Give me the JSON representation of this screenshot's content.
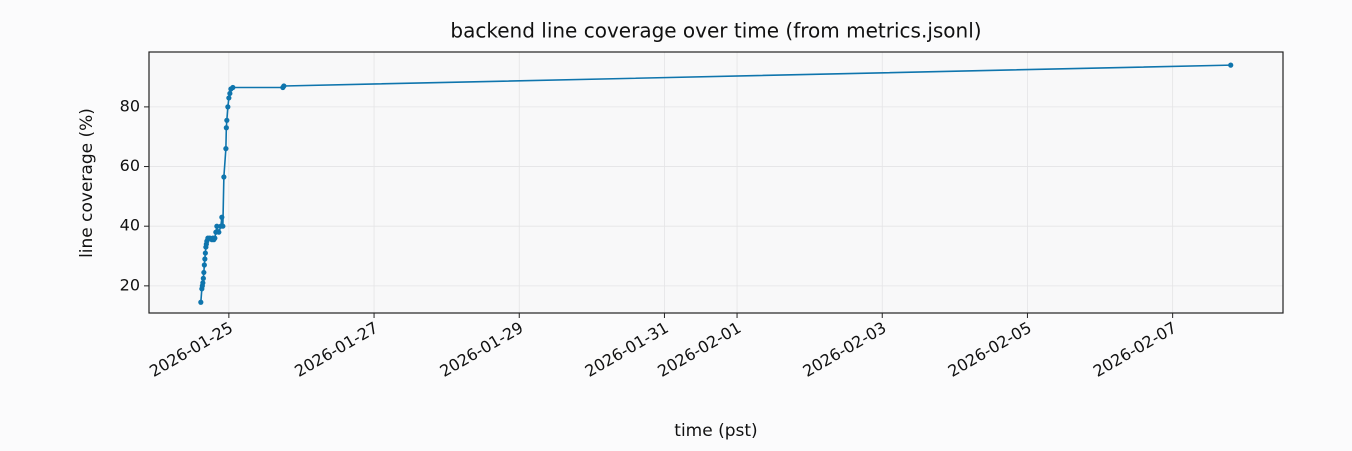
{
  "chart_data": {
    "type": "line",
    "title": "backend line coverage over time (from metrics.jsonl)",
    "x_label": "time (pst)",
    "y_label": "line coverage (%)",
    "x": [
      "2026-01-24T14:44",
      "2026-01-24T15:04",
      "2026-01-24T15:14",
      "2026-01-24T15:24",
      "2026-01-24T15:34",
      "2026-01-24T15:44",
      "2026-01-24T15:54",
      "2026-01-24T16:04",
      "2026-01-24T16:14",
      "2026-01-24T16:24",
      "2026-01-24T16:34",
      "2026-01-24T16:44",
      "2026-01-24T17:04",
      "2026-01-24T17:43",
      "2026-01-24T18:23",
      "2026-01-24T18:43",
      "2026-01-24T19:02",
      "2026-01-24T19:22",
      "2026-01-24T19:42",
      "2026-01-24T20:02",
      "2026-01-24T20:41",
      "2026-01-24T21:21",
      "2026-01-24T21:41",
      "2026-01-24T22:01",
      "2026-01-24T22:21",
      "2026-01-24T23:01",
      "2026-01-24T23:10",
      "2026-01-24T23:20",
      "2026-01-24T23:40",
      "2026-01-25T00:00",
      "2026-01-25T00:20",
      "2026-01-25T00:40",
      "2026-01-25T01:19",
      "2026-01-25T17:51",
      "2026-01-25T18:11",
      "2026-02-07T19:12"
    ],
    "series": [
      {
        "name": "line coverage",
        "color": "#0f75ad",
        "values": [
          14.5,
          19,
          20,
          21,
          22.5,
          24.5,
          27,
          29,
          31,
          33,
          34,
          35,
          36,
          36,
          35.5,
          36,
          35.5,
          36,
          38,
          40,
          38,
          40,
          43,
          40,
          56.5,
          66,
          73,
          75.5,
          80,
          83,
          84.5,
          86,
          86.5,
          86.5,
          87,
          94
        ]
      }
    ],
    "xlim": [
      "2026-01-23T21:36",
      "2026-02-08T12:29"
    ],
    "xticks": [
      "2026-01-25",
      "2026-01-27",
      "2026-01-29",
      "2026-01-31",
      "2026-02-01",
      "2026-02-03",
      "2026-02-05",
      "2026-02-07"
    ],
    "ylim": [
      10.9,
      98.4
    ],
    "yticks": [
      20,
      40,
      60,
      80
    ],
    "grid": true
  }
}
